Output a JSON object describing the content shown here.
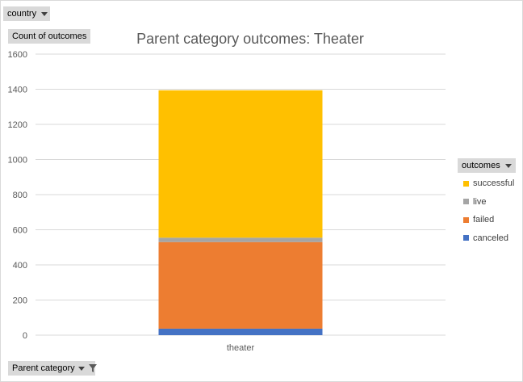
{
  "filters": {
    "country_label": "country",
    "parent_category_label": "Parent category"
  },
  "value_field_label": "Count of outcomes",
  "legend_header": "outcomes",
  "chart_data": {
    "type": "bar",
    "stacked": true,
    "title": "Parent category outcomes:  Theater",
    "xlabel": "",
    "ylabel": "",
    "categories": [
      "theater"
    ],
    "ylim": [
      0,
      1600
    ],
    "yticks": [
      0,
      200,
      400,
      600,
      800,
      1000,
      1200,
      1400,
      1600
    ],
    "grid": true,
    "legend_position": "right",
    "series": [
      {
        "name": "canceled",
        "values": [
          37
        ],
        "color": "#4472c4"
      },
      {
        "name": "failed",
        "values": [
          493
        ],
        "color": "#ed7d31"
      },
      {
        "name": "live",
        "values": [
          25
        ],
        "color": "#a5a5a5"
      },
      {
        "name": "successful",
        "values": [
          839
        ],
        "color": "#ffc000"
      }
    ],
    "legend_order": [
      "successful",
      "live",
      "failed",
      "canceled"
    ]
  }
}
